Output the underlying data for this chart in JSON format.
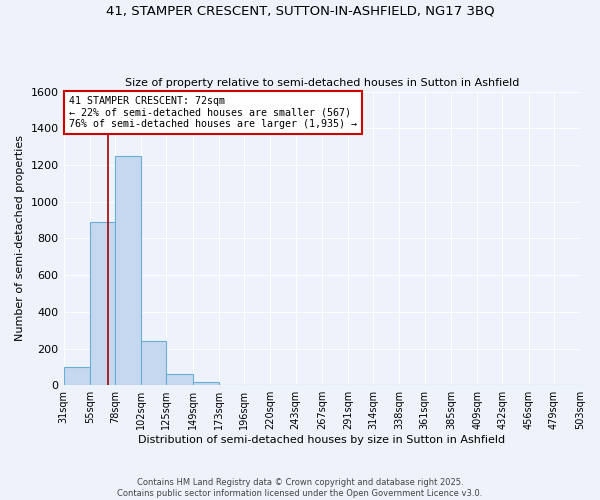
{
  "title1": "41, STAMPER CRESCENT, SUTTON-IN-ASHFIELD, NG17 3BQ",
  "title2": "Size of property relative to semi-detached houses in Sutton in Ashfield",
  "xlabel": "Distribution of semi-detached houses by size in Sutton in Ashfield",
  "ylabel": "Number of semi-detached properties",
  "bin_labels": [
    "31sqm",
    "55sqm",
    "78sqm",
    "102sqm",
    "125sqm",
    "149sqm",
    "173sqm",
    "196sqm",
    "220sqm",
    "243sqm",
    "267sqm",
    "291sqm",
    "314sqm",
    "338sqm",
    "361sqm",
    "385sqm",
    "409sqm",
    "432sqm",
    "456sqm",
    "479sqm",
    "503sqm"
  ],
  "bin_edges": [
    31,
    55,
    78,
    102,
    125,
    149,
    173,
    196,
    220,
    243,
    267,
    291,
    314,
    338,
    361,
    385,
    409,
    432,
    456,
    479,
    503
  ],
  "bar_heights": [
    100,
    890,
    1250,
    240,
    60,
    20,
    0,
    0,
    0,
    0,
    0,
    0,
    0,
    0,
    0,
    0,
    0,
    0,
    0,
    0
  ],
  "bar_color": "#c5d8f0",
  "bar_edge_color": "#6aaed6",
  "property_size": 72,
  "red_line_color": "#aa0000",
  "annotation_line1": "41 STAMPER CRESCENT: 72sqm",
  "annotation_line2": "← 22% of semi-detached houses are smaller (567)",
  "annotation_line3": "76% of semi-detached houses are larger (1,935) →",
  "annotation_box_color": "#ffffff",
  "annotation_border_color": "#cc0000",
  "background_color": "#eef2fa",
  "grid_color": "#ffffff",
  "footer_text": "Contains HM Land Registry data © Crown copyright and database right 2025.\nContains public sector information licensed under the Open Government Licence v3.0.",
  "ylim": [
    0,
    1600
  ],
  "yticks": [
    0,
    200,
    400,
    600,
    800,
    1000,
    1200,
    1400,
    1600
  ]
}
